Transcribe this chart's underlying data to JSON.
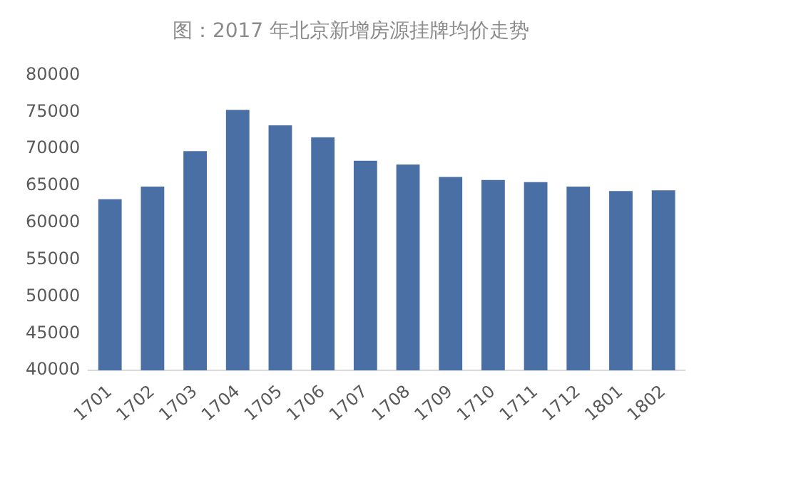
{
  "chart_data": {
    "type": "bar",
    "title": "图：2017 年北京新增房源挂牌均价走势",
    "categories": [
      "1701",
      "1702",
      "1703",
      "1704",
      "1705",
      "1706",
      "1707",
      "1708",
      "1709",
      "1710",
      "1711",
      "1712",
      "1801",
      "1802"
    ],
    "values": [
      63200,
      64900,
      69700,
      75300,
      73200,
      71600,
      68400,
      67900,
      66200,
      65800,
      65500,
      64900,
      64300,
      64400
    ],
    "color": "#4a6fa5",
    "ylim": [
      40000,
      80000
    ],
    "yticks": [
      40000,
      45000,
      50000,
      55000,
      60000,
      65000,
      70000,
      75000,
      80000
    ],
    "grid": false
  }
}
